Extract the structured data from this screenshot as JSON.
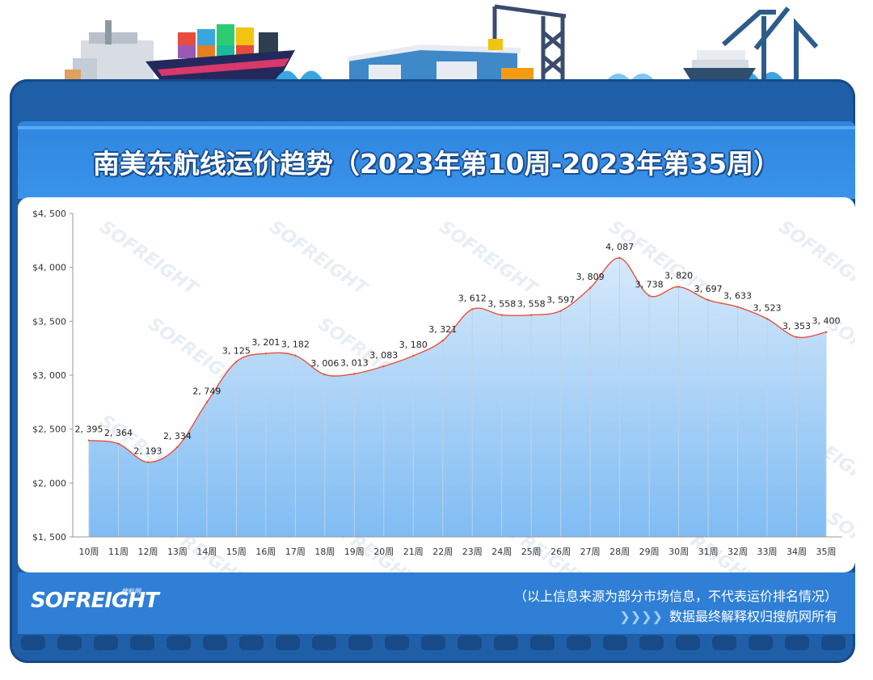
{
  "header": {
    "title": "南美东航线运价趋势（2023年第10周-2023年第35周）"
  },
  "chart_data": {
    "type": "area",
    "categories": [
      "10周",
      "11周",
      "12周",
      "13周",
      "14周",
      "15周",
      "16周",
      "17周",
      "18周",
      "19周",
      "20周",
      "21周",
      "22周",
      "23周",
      "24周",
      "25周",
      "26周",
      "27周",
      "28周",
      "29周",
      "30周",
      "31周",
      "32周",
      "33周",
      "34周",
      "35周"
    ],
    "series": [
      {
        "values": [
          2395,
          2364,
          2193,
          2334,
          2749,
          3125,
          3201,
          3182,
          3006,
          3013,
          3083,
          3180,
          3321,
          3612,
          3558,
          3558,
          3597,
          3809,
          4087,
          3738,
          3820,
          3697,
          3633,
          3523,
          3353,
          3400
        ]
      }
    ],
    "data_labels": [
      "2, 395",
      "2, 364",
      "2, 193",
      "2, 334",
      "2, 749",
      "3, 125",
      "3, 201",
      "3, 182",
      "3, 006",
      "3, 013",
      "3, 083",
      "3, 180",
      "3, 321",
      "3, 612",
      "3, 558",
      "3, 558",
      "3, 597",
      "3, 809",
      "4, 087",
      "3, 738",
      "3, 820",
      "3, 697",
      "3, 633",
      "3, 523",
      "3, 353",
      "3, 400"
    ],
    "y_ticks": [
      1500,
      2000,
      2500,
      3000,
      3500,
      4000,
      4500
    ],
    "y_tick_labels": [
      "$1, 500",
      "$2, 000",
      "$2, 500",
      "$3, 000",
      "$3, 500",
      "$4, 000",
      "$4, 500"
    ],
    "ylim": [
      1500,
      4500
    ],
    "title": "",
    "xlabel": "",
    "ylabel": "",
    "grid": false,
    "colors": {
      "line": "#e8503a",
      "fill_top": "#d6e9fb",
      "fill_bottom": "#7fbcf3",
      "drop_lines": "#bcd2e6"
    }
  },
  "watermark": "SOFREIGHT",
  "footer": {
    "logo": "SOFREIGHT",
    "logo_sub": "搜航网",
    "note_line1": "（以上信息来源为部分市场信息，不代表运价排名情况）",
    "note_line2": "数据最终解释权归搜航网所有",
    "arrows": "❯❯❯❯"
  },
  "colors": {
    "frame": "#1f5fa8",
    "title_band": "#3a93ea",
    "bottom_band": "#2f7fd6"
  }
}
